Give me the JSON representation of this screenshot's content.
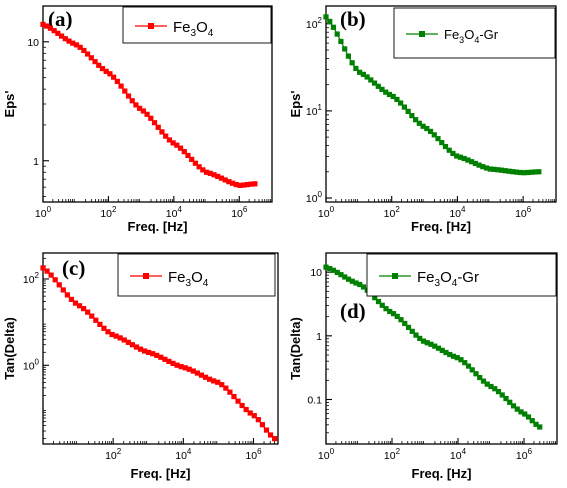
{
  "chart_data": [
    {
      "panel": "(a)",
      "type": "line",
      "xscale": "log",
      "yscale": "log",
      "xlim": [
        1,
        10000000.0
      ],
      "ylim": [
        0.45,
        20
      ],
      "xlabel": "Freq. [Hz]",
      "ylabel": "Eps'",
      "xticks": [
        {
          "v": 1,
          "label": "10^0"
        },
        {
          "v": 100,
          "label": "10^2"
        },
        {
          "v": 10000,
          "label": "10^4"
        },
        {
          "v": 1000000,
          "label": "10^6"
        }
      ],
      "yticks": [
        {
          "v": 1,
          "label": "1"
        },
        {
          "v": 10,
          "label": "10"
        }
      ],
      "legend": {
        "base": "Fe",
        "sub1": "3",
        "mid": "O",
        "sub2": "4",
        "tail": "",
        "placement": "top-right"
      },
      "color": "#ff0000",
      "marker": "square",
      "series": [
        {
          "x": [
            1,
            10,
            100,
            1000,
            10000,
            100000,
            1000000,
            3000000
          ],
          "y": [
            14,
            9.5,
            5.5,
            2.7,
            1.4,
            0.8,
            0.62,
            0.64
          ]
        }
      ]
    },
    {
      "panel": "(b)",
      "type": "line",
      "xscale": "log",
      "yscale": "log",
      "xlim": [
        1,
        10000000.0
      ],
      "ylim": [
        0.9,
        160
      ],
      "xlabel": "Freq. [Hz]",
      "ylabel": "Eps'",
      "xticks": [
        {
          "v": 1,
          "label": "10^0"
        },
        {
          "v": 100,
          "label": "10^2"
        },
        {
          "v": 10000,
          "label": "10^4"
        },
        {
          "v": 1000000,
          "label": "10^6"
        }
      ],
      "yticks": [
        {
          "v": 1,
          "label": "10^0"
        },
        {
          "v": 10,
          "label": "10^1"
        },
        {
          "v": 100,
          "label": "10^2"
        }
      ],
      "legend": {
        "base": "Fe",
        "sub1": "3",
        "mid": "O",
        "sub2": "4",
        "tail": "-Gr",
        "placement": "top-right"
      },
      "color": "#008000",
      "marker": "square",
      "series": [
        {
          "x": [
            1,
            10,
            100,
            1000,
            10000,
            100000,
            1000000,
            3000000
          ],
          "y": [
            120,
            28,
            15,
            6.5,
            3.0,
            2.15,
            1.95,
            2.0
          ]
        }
      ]
    },
    {
      "panel": "(c)",
      "type": "line",
      "xscale": "log",
      "yscale": "log",
      "xlim": [
        1,
        5000000.0
      ],
      "ylim": [
        0.015,
        400
      ],
      "xlabel": "Freq. [Hz]",
      "ylabel": "Tan(Delta)",
      "xticks": [
        {
          "v": 100,
          "label": "10^2"
        },
        {
          "v": 10000,
          "label": "10^4"
        },
        {
          "v": 1000000,
          "label": "10^6"
        }
      ],
      "yticks": [
        {
          "v": 1,
          "label": "10^0"
        },
        {
          "v": 100,
          "label": "10^2"
        }
      ],
      "legend": {
        "base": "Fe",
        "sub1": "3",
        "mid": "O",
        "sub2": "4",
        "tail": "",
        "placement": "top-right"
      },
      "color": "#ff0000",
      "marker": "square",
      "series": [
        {
          "x": [
            1,
            10,
            100,
            1000,
            10000,
            100000,
            1000000,
            4000000
          ],
          "y": [
            180,
            25,
            5,
            2,
            0.9,
            0.4,
            0.07,
            0.02
          ]
        }
      ]
    },
    {
      "panel": "(d)",
      "type": "line",
      "xscale": "log",
      "yscale": "log",
      "xlim": [
        1,
        10000000.0
      ],
      "ylim": [
        0.02,
        20
      ],
      "xlabel": "Freq. [Hz]",
      "ylabel": "Tan(Delta)",
      "xticks": [
        {
          "v": 1,
          "label": "10^0"
        },
        {
          "v": 100,
          "label": "10^2"
        },
        {
          "v": 10000,
          "label": "10^4"
        },
        {
          "v": 1000000,
          "label": "10^6"
        }
      ],
      "yticks": [
        {
          "v": 0.1,
          "label": "0.1"
        },
        {
          "v": 1,
          "label": "1"
        },
        {
          "v": 10,
          "label": "10"
        }
      ],
      "legend": {
        "base": "Fe",
        "sub1": "3",
        "mid": "O",
        "sub2": "4",
        "tail": "-Gr",
        "placement": "top-right"
      },
      "color": "#008000",
      "marker": "square",
      "series": [
        {
          "x": [
            1,
            10,
            100,
            1000,
            10000,
            100000,
            1000000,
            3000000
          ],
          "y": [
            12,
            6.5,
            2.3,
            0.8,
            0.45,
            0.16,
            0.06,
            0.037
          ]
        }
      ]
    }
  ]
}
